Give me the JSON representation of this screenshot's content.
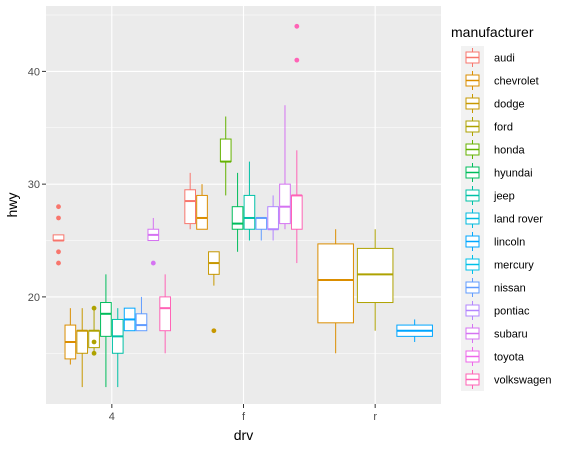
{
  "chart_data": {
    "type": "boxplot",
    "title": "",
    "xlabel": "drv",
    "ylabel": "hwy",
    "categories": [
      "4",
      "f",
      "r"
    ],
    "ylim": [
      10.5,
      45.8
    ],
    "yticks": [
      20,
      30,
      40
    ],
    "grid": true,
    "legend": {
      "title": "manufacturer",
      "placement": "right"
    },
    "manufacturers": [
      {
        "name": "audi",
        "color": "#F8766D"
      },
      {
        "name": "chevrolet",
        "color": "#DB8E00"
      },
      {
        "name": "dodge",
        "color": "#C79800"
      },
      {
        "name": "ford",
        "color": "#AEA200"
      },
      {
        "name": "honda",
        "color": "#64B200"
      },
      {
        "name": "hyundai",
        "color": "#00BD5C"
      },
      {
        "name": "jeep",
        "color": "#00C1A7"
      },
      {
        "name": "land rover",
        "color": "#00BADE"
      },
      {
        "name": "lincoln",
        "color": "#00A6FF"
      },
      {
        "name": "mercury",
        "color": "#00C0E8"
      },
      {
        "name": "nissan",
        "color": "#619CFF"
      },
      {
        "name": "pontiac",
        "color": "#B385FF"
      },
      {
        "name": "subaru",
        "color": "#D573F2"
      },
      {
        "name": "toyota",
        "color": "#EF67EB"
      },
      {
        "name": "volkswagen",
        "color": "#FF63B6"
      }
    ],
    "groups": [
      {
        "drv": "4",
        "boxes": [
          {
            "manufacturer": "audi",
            "min": 25,
            "q1": 25,
            "median": 25,
            "q3": 25.5,
            "max": 25.5,
            "outliers": [
              23,
              24,
              27,
              28
            ]
          },
          {
            "manufacturer": "chevrolet",
            "min": 14,
            "q1": 14.5,
            "median": 16,
            "q3": 17.5,
            "max": 19,
            "outliers": []
          },
          {
            "manufacturer": "dodge",
            "min": 12,
            "q1": 15,
            "median": 17,
            "q3": 17,
            "max": 19,
            "outliers": []
          },
          {
            "manufacturer": "ford",
            "min": 15,
            "q1": 15.5,
            "median": 17,
            "q3": 17,
            "max": 19,
            "outliers": [
              15,
              16,
              19
            ]
          },
          {
            "manufacturer": "hyundai",
            "min": 12,
            "q1": 16.5,
            "median": 18.5,
            "q3": 19.5,
            "max": 22,
            "outliers": []
          },
          {
            "manufacturer": "jeep",
            "min": 12,
            "q1": 15,
            "median": 16.5,
            "q3": 18,
            "max": 19,
            "outliers": []
          },
          {
            "manufacturer": "lincoln",
            "min": 17,
            "q1": 17,
            "median": 18,
            "q3": 19,
            "max": 19,
            "outliers": []
          },
          {
            "manufacturer": "nissan",
            "min": 17,
            "q1": 17,
            "median": 17.5,
            "q3": 18.5,
            "max": 20,
            "outliers": []
          },
          {
            "manufacturer": "subaru",
            "min": 25,
            "q1": 25,
            "median": 25.5,
            "q3": 26,
            "max": 27,
            "outliers": [
              23
            ]
          },
          {
            "manufacturer": "volkswagen",
            "min": 15,
            "q1": 17,
            "median": 19,
            "q3": 20,
            "max": 22,
            "outliers": []
          }
        ]
      },
      {
        "drv": "f",
        "boxes": [
          {
            "manufacturer": "audi",
            "min": 26,
            "q1": 26.5,
            "median": 28.5,
            "q3": 29.5,
            "max": 31,
            "outliers": []
          },
          {
            "manufacturer": "chevrolet",
            "min": 26,
            "q1": 26,
            "median": 27,
            "q3": 29,
            "max": 30,
            "outliers": []
          },
          {
            "manufacturer": "dodge",
            "min": 21,
            "q1": 22,
            "median": 23,
            "q3": 24,
            "max": 24,
            "outliers": [
              17
            ]
          },
          {
            "manufacturer": "honda",
            "min": 29,
            "q1": 32,
            "median": 32,
            "q3": 34,
            "max": 36,
            "outliers": []
          },
          {
            "manufacturer": "hyundai",
            "min": 24,
            "q1": 26,
            "median": 26.5,
            "q3": 28,
            "max": 31,
            "outliers": []
          },
          {
            "manufacturer": "jeep",
            "min": 25,
            "q1": 26,
            "median": 27,
            "q3": 29,
            "max": 32,
            "outliers": []
          },
          {
            "manufacturer": "nissan",
            "min": 25,
            "q1": 26,
            "median": 27,
            "q3": 27,
            "max": 27,
            "outliers": []
          },
          {
            "manufacturer": "pontiac",
            "min": 25,
            "q1": 26,
            "median": 26,
            "q3": 28,
            "max": 29,
            "outliers": []
          },
          {
            "manufacturer": "subaru",
            "min": 26,
            "q1": 26.5,
            "median": 28,
            "q3": 30,
            "max": 37,
            "outliers": []
          },
          {
            "manufacturer": "volkswagen",
            "min": 23,
            "q1": 26,
            "median": 29,
            "q3": 29,
            "max": 33,
            "outliers": [
              41,
              44
            ]
          }
        ]
      },
      {
        "drv": "r",
        "boxes": [
          {
            "manufacturer": "chevrolet",
            "min": 15,
            "q1": 17.7,
            "median": 21.5,
            "q3": 24.7,
            "max": 26,
            "outliers": []
          },
          {
            "manufacturer": "ford",
            "min": 17,
            "q1": 19.5,
            "median": 22,
            "q3": 24.3,
            "max": 26,
            "outliers": []
          },
          {
            "manufacturer": "lincoln",
            "min": 16,
            "q1": 16.5,
            "median": 17,
            "q3": 17.5,
            "max": 18,
            "outliers": []
          }
        ]
      }
    ]
  }
}
